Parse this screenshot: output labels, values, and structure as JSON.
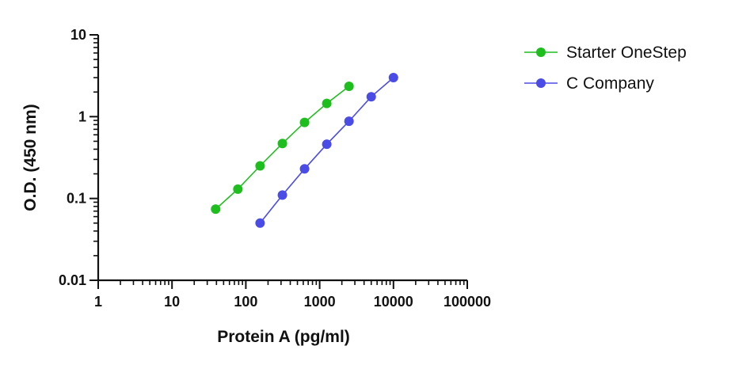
{
  "chart_data": {
    "type": "scatter",
    "title": "",
    "xlabel": "Protein A (pg/ml)",
    "ylabel": "O.D. (450 nm)",
    "x_scale": "log",
    "y_scale": "log",
    "xlim": [
      1,
      100000
    ],
    "ylim": [
      0.01,
      10
    ],
    "x_ticks": [
      1,
      10,
      100,
      1000,
      10000,
      100000
    ],
    "x_tick_labels": [
      "1",
      "10",
      "100",
      "1000",
      "10000",
      "100000"
    ],
    "y_ticks": [
      0.01,
      0.1,
      1,
      10
    ],
    "y_tick_labels": [
      "0.01",
      "0.1",
      "1",
      "10"
    ],
    "grid": false,
    "legend_position": "top-right",
    "series": [
      {
        "name": "Starter OneStep",
        "color": "#1fbe1f",
        "x": [
          39,
          78,
          156,
          313,
          625,
          1250,
          2500
        ],
        "y": [
          0.074,
          0.13,
          0.25,
          0.47,
          0.85,
          1.45,
          2.35
        ]
      },
      {
        "name": "C Company",
        "color": "#4b4be6",
        "x": [
          156,
          313,
          625,
          1250,
          2500,
          5000,
          10000
        ],
        "y": [
          0.05,
          0.11,
          0.23,
          0.46,
          0.88,
          1.75,
          3.0
        ]
      }
    ]
  }
}
